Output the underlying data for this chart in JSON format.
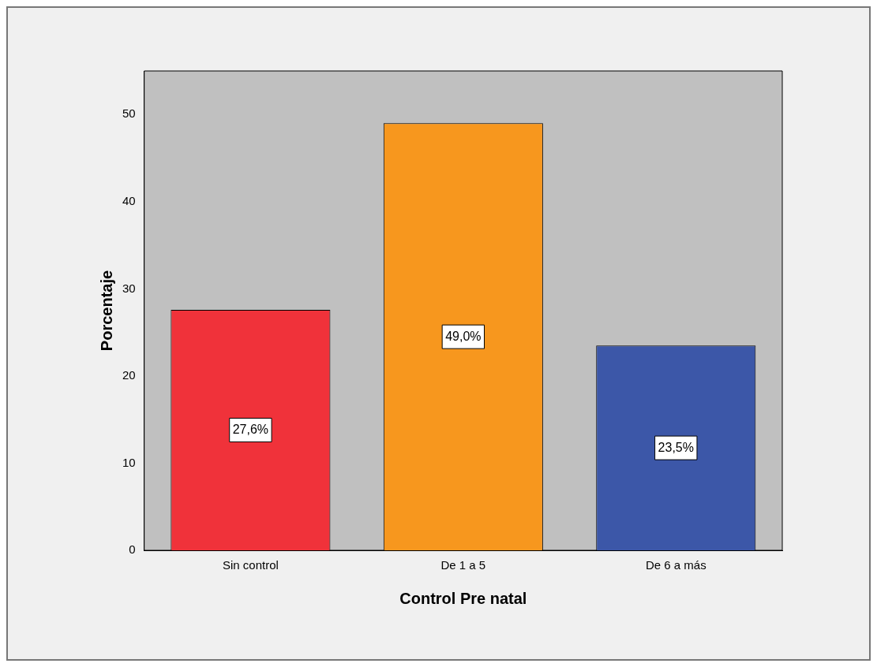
{
  "chart_data": {
    "type": "bar",
    "xlabel": "Control Pre natal",
    "ylabel": "Porcentaje",
    "categories": [
      "Sin control",
      "De 1 a 5",
      "De 6 a más"
    ],
    "values": [
      27.6,
      49.0,
      23.5
    ],
    "colors": [
      "#f0323a",
      "#f7971e",
      "#3c57a8"
    ],
    "value_labels": [
      "27,6%",
      "49,0%",
      "23,5%"
    ],
    "ylim": [
      0,
      55
    ],
    "yticks": [
      0,
      10,
      20,
      30,
      40,
      50
    ],
    "grid": false,
    "legend": false
  }
}
